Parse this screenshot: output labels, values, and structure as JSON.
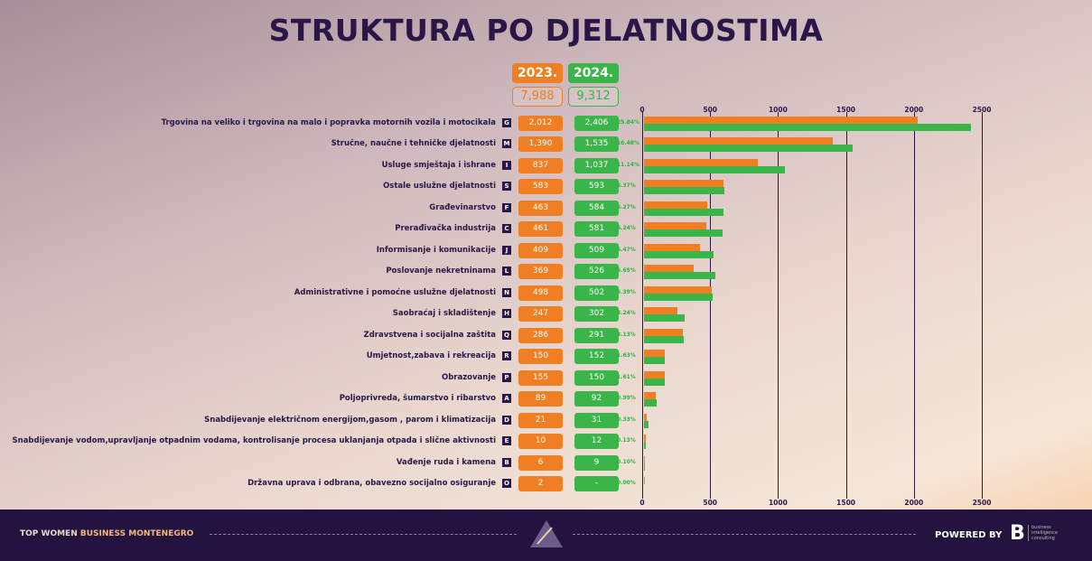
{
  "chart_data": {
    "type": "bar",
    "title": "STRUKTURA PO DJELATNOSTIMA",
    "legend": [
      {
        "name": "2023.",
        "total": "7,988",
        "color": "#f07f23"
      },
      {
        "name": "2024.",
        "total": "9,312",
        "color": "#3ab54a"
      }
    ],
    "xlim": [
      0,
      2500
    ],
    "xticks": [
      "0",
      "500",
      "1000",
      "1500",
      "2000",
      "2500"
    ],
    "categories": [
      {
        "label": "Trgovina na veliko i trgovina na malo i popravka motornih vozila i motocikala",
        "code": "G",
        "v2023": "2,012",
        "v2024": "2,406",
        "pct": "25.84%"
      },
      {
        "label": "Stručne, naučne i tehničke djelatnosti",
        "code": "M",
        "v2023": "1,390",
        "v2024": "1,535",
        "pct": "16.48%"
      },
      {
        "label": "Usluge smještaja i ishrane",
        "code": "I",
        "v2023": "837",
        "v2024": "1,037",
        "pct": "11.14%"
      },
      {
        "label": "Ostale uslužne djelatnosti",
        "code": "S",
        "v2023": "583",
        "v2024": "593",
        "pct": "6.37%"
      },
      {
        "label": "Građevinarstvo",
        "code": "F",
        "v2023": "463",
        "v2024": "584",
        "pct": "6.27%"
      },
      {
        "label": "Prerađivačka industrija",
        "code": "C",
        "v2023": "461",
        "v2024": "581",
        "pct": "6.24%"
      },
      {
        "label": "Informisanje i komunikacije",
        "code": "J",
        "v2023": "409",
        "v2024": "509",
        "pct": "5.47%"
      },
      {
        "label": "Poslovanje nekretninama",
        "code": "L",
        "v2023": "369",
        "v2024": "526",
        "pct": "5.65%"
      },
      {
        "label": "Administrativne i pomoćne uslužne djelatnosti",
        "code": "N",
        "v2023": "498",
        "v2024": "502",
        "pct": "5.39%"
      },
      {
        "label": "Saobraćaj i skladištenje",
        "code": "H",
        "v2023": "247",
        "v2024": "302",
        "pct": "3.24%"
      },
      {
        "label": "Zdravstvena i socijalna zaštita",
        "code": "Q",
        "v2023": "286",
        "v2024": "291",
        "pct": "3.13%"
      },
      {
        "label": "Umjetnost,zabava i rekreacija",
        "code": "R",
        "v2023": "150",
        "v2024": "152",
        "pct": "1.63%"
      },
      {
        "label": "Obrazovanje",
        "code": "P",
        "v2023": "155",
        "v2024": "150",
        "pct": "1.61%"
      },
      {
        "label": "Poljoprivreda, šumarstvo i ribarstvo",
        "code": "A",
        "v2023": "89",
        "v2024": "92",
        "pct": "0.99%"
      },
      {
        "label": "Snabdijevanje električnom energijom,gasom , parom i klimatizacija",
        "code": "D",
        "v2023": "21",
        "v2024": "31",
        "pct": "0.33%"
      },
      {
        "label": "Snabdijevanje vodom,upravljanje otpadnim vodama, kontrolisanje procesa uklanjanja otpada i slične aktivnosti",
        "code": "E",
        "v2023": "10",
        "v2024": "12",
        "pct": "0.13%"
      },
      {
        "label": "Vađenje ruda i kamena",
        "code": "B",
        "v2023": "6",
        "v2024": "9",
        "pct": "0.10%"
      },
      {
        "label": "Državna uprava i odbrana, obavezno socijalno osiguranje",
        "code": "O",
        "v2023": "2",
        "v2024": "-",
        "pct": "0.00%"
      }
    ]
  },
  "footer": {
    "brand_a": "TOP WOMEN",
    "brand_b": "BUSINESS MONTENEGRO",
    "powered": "POWERED BY",
    "logo_text": "business intelligence consulting"
  }
}
